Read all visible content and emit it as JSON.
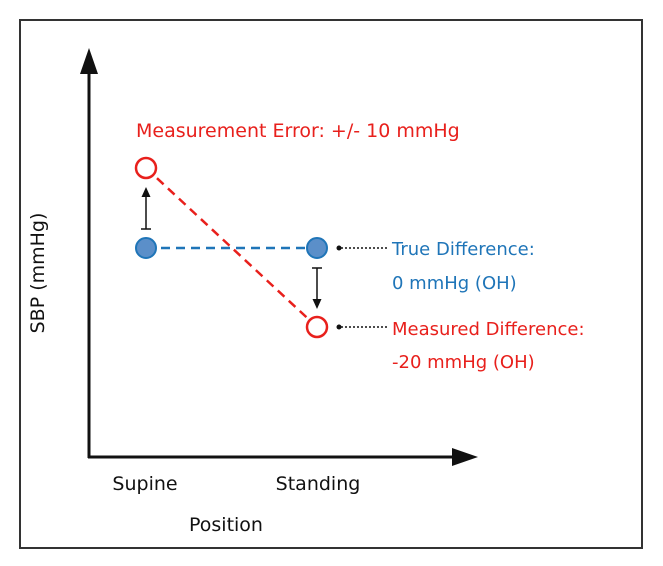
{
  "annotations": {
    "measurement_error": "Measurement Error: +/- 10 mmHg",
    "true_difference_line1": "True Difference:",
    "true_difference_line2": "0 mmHg (OH)",
    "measured_difference_line1": "Measured Difference:",
    "measured_difference_line2": "-20 mmHg (OH)"
  },
  "axes": {
    "ylabel": "SBP (mmHg)",
    "xlabel": "Position",
    "categories": [
      "Supine",
      "Standing"
    ]
  },
  "colors": {
    "true": "#1f75b8",
    "true_fill": "#5b8fc9",
    "measured": "#e8201c",
    "axis": "#111111",
    "frame": "#333333"
  }
}
